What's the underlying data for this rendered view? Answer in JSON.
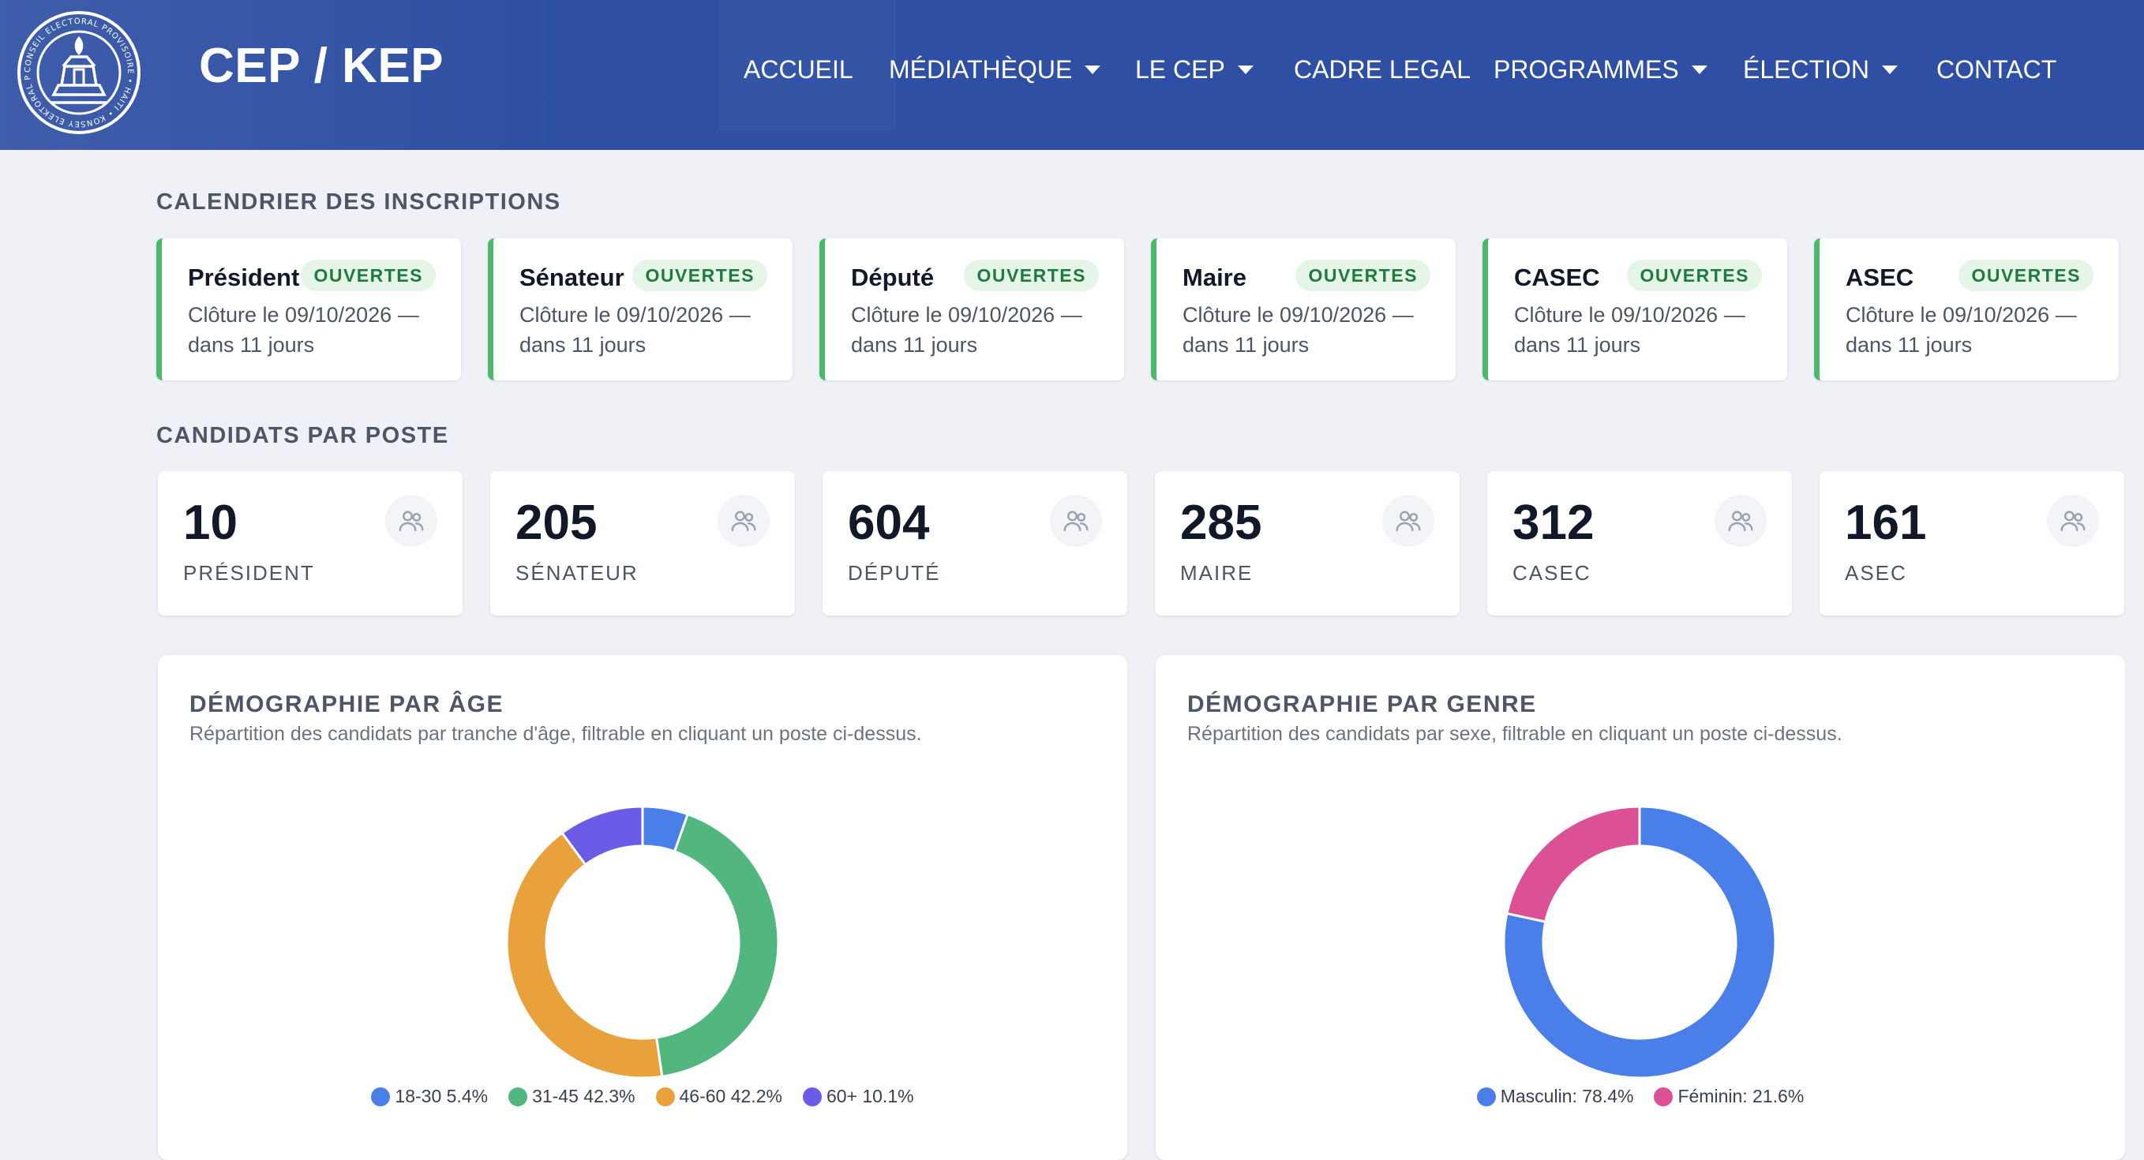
{
  "header": {
    "brand": "CEP / KEP",
    "logo_text": "CONSEIL ELECTORAL PROVISOIRE • HAITI • KONSEY ELEKTORAL PWOVIZWA • AYITI",
    "nav": [
      {
        "label": "ACCUEIL",
        "dropdown": false
      },
      {
        "label": "MÉDIATHÈQUE",
        "dropdown": true
      },
      {
        "label": "LE CEP",
        "dropdown": true
      },
      {
        "label": "CADRE LEGAL",
        "dropdown": false
      },
      {
        "label": "PROGRAMMES",
        "dropdown": true
      },
      {
        "label": "ÉLECTION",
        "dropdown": true
      },
      {
        "label": "CONTACT",
        "dropdown": false
      }
    ]
  },
  "registration": {
    "title": "CALENDRIER DES INSCRIPTIONS",
    "cards": [
      {
        "post": "Président",
        "status": "OUVERTES",
        "closing": "Clôture le 09/10/2026 —",
        "remaining": "dans 11 jours"
      },
      {
        "post": "Sénateur",
        "status": "OUVERTES",
        "closing": "Clôture le 09/10/2026 —",
        "remaining": "dans 11 jours"
      },
      {
        "post": "Député",
        "status": "OUVERTES",
        "closing": "Clôture le 09/10/2026 —",
        "remaining": "dans 11 jours"
      },
      {
        "post": "Maire",
        "status": "OUVERTES",
        "closing": "Clôture le 09/10/2026 —",
        "remaining": "dans 11 jours"
      },
      {
        "post": "CASEC",
        "status": "OUVERTES",
        "closing": "Clôture le 09/10/2026 —",
        "remaining": "dans 11 jours"
      },
      {
        "post": "ASEC",
        "status": "OUVERTES",
        "closing": "Clôture le 09/10/2026 —",
        "remaining": "dans 11 jours"
      }
    ]
  },
  "candidates": {
    "title": "CANDIDATS PAR POSTE",
    "icon": "users-icon",
    "cards": [
      {
        "count": "10",
        "label": "PRÉSIDENT"
      },
      {
        "count": "205",
        "label": "SÉNATEUR"
      },
      {
        "count": "604",
        "label": "DÉPUTÉ"
      },
      {
        "count": "285",
        "label": "MAIRE"
      },
      {
        "count": "312",
        "label": "CASEC"
      },
      {
        "count": "161",
        "label": "ASEC"
      }
    ]
  },
  "age_panel": {
    "title": "DÉMOGRAPHIE PAR ÂGE",
    "subtitle": "Répartition des candidats par tranche d'âge, filtrable en cliquant un poste ci-dessus.",
    "legend": [
      {
        "label": "18-30 5.4%",
        "color": "#4a7ee8"
      },
      {
        "label": "31-45 42.3%",
        "color": "#52b77f"
      },
      {
        "label": "46-60 42.2%",
        "color": "#e9a23b"
      },
      {
        "label": "60+ 10.1%",
        "color": "#6b5ce7"
      }
    ]
  },
  "gender_panel": {
    "title": "DÉMOGRAPHIE PAR GENRE",
    "subtitle": "Répartition des candidats par sexe, filtrable en cliquant un poste ci-dessus.",
    "legend": [
      {
        "label": "Masculin: 78.4%",
        "color": "#4a7ee8"
      },
      {
        "label": "Féminin: 21.6%",
        "color": "#dc5196"
      }
    ]
  },
  "chart_data": [
    {
      "type": "pie",
      "categories": [
        "18-30",
        "31-45",
        "46-60",
        "60+"
      ],
      "values": [
        5.4,
        42.3,
        42.2,
        10.1
      ],
      "colors": [
        "#4a7ee8",
        "#52b77f",
        "#e9a23b",
        "#6b5ce7"
      ],
      "title": "DÉMOGRAPHIE PAR ÂGE",
      "legend": "bottom"
    },
    {
      "type": "pie",
      "categories": [
        "Masculin",
        "Féminin"
      ],
      "values": [
        78.4,
        21.6
      ],
      "colors": [
        "#4a7ee8",
        "#dc5196"
      ],
      "title": "DÉMOGRAPHIE PAR GENRE",
      "legend": "bottom"
    }
  ]
}
